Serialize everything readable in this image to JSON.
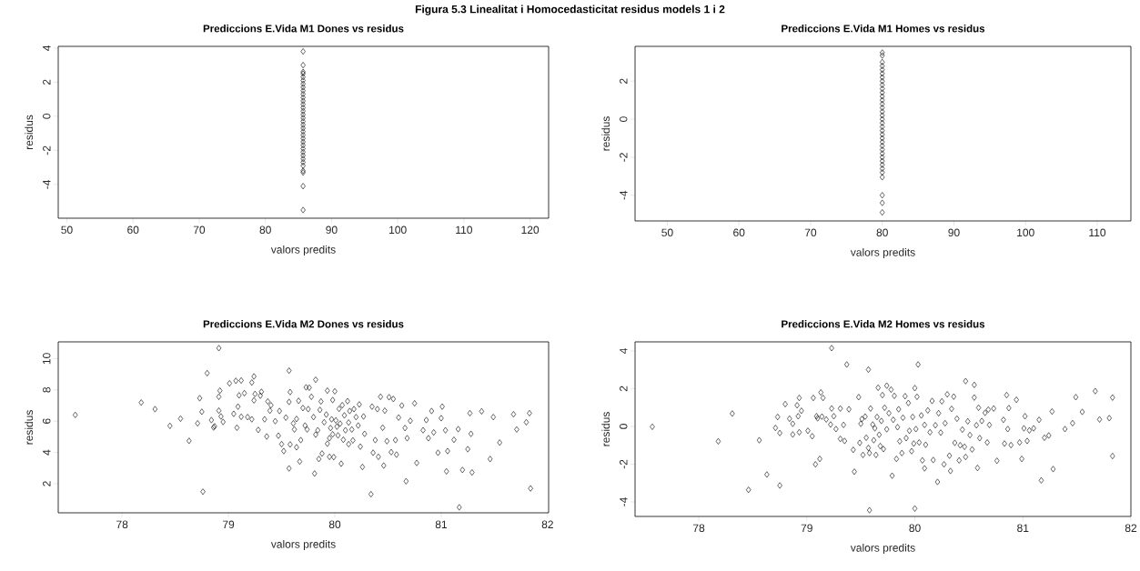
{
  "chart_data": [
    {
      "type": "scatter",
      "title": "Prediccions E.Vida M1 Dones vs residus",
      "xlabel": "valors predits",
      "ylabel": "residus",
      "annotations": [
        "Figura 5.3 Linealitat i Homocedasticitat residus models 1 i 2"
      ],
      "marker": "diamond",
      "xlim": [
        48.7,
        122.8
      ],
      "ylim": [
        -5.98,
        4.1
      ],
      "xticks": [
        50,
        60,
        70,
        80,
        90,
        100,
        110,
        120
      ],
      "yticks": [
        -4,
        -2,
        0,
        2,
        4
      ],
      "x": [
        85.7,
        85.7,
        85.7,
        85.7,
        85.7,
        85.7,
        85.7,
        85.7,
        85.7,
        85.7,
        85.7,
        85.7,
        85.7,
        85.7,
        85.7,
        85.7,
        85.7,
        85.7,
        85.7,
        85.7,
        85.7,
        85.7,
        85.7,
        85.7,
        85.7,
        85.7,
        85.7,
        85.7,
        85.7,
        85.7,
        85.7,
        85.7,
        85.7,
        85.7,
        85.7
      ],
      "series": [
        {
          "color": "#000000",
          "values": [
            3.8,
            3.0,
            2.6,
            2.5,
            2.3,
            2.1,
            1.9,
            1.7,
            1.5,
            1.3,
            1.1,
            0.9,
            0.7,
            0.5,
            0.3,
            0.1,
            -0.1,
            -0.3,
            -0.5,
            -0.7,
            -0.9,
            -1.1,
            -1.3,
            -1.5,
            -1.7,
            -1.9,
            -2.1,
            -2.3,
            -2.5,
            -2.7,
            -2.9,
            -3.2,
            -3.3,
            -4.1,
            -5.5
          ]
        }
      ]
    },
    {
      "type": "scatter",
      "title": "Prediccions E.Vida M1 Homes vs residus",
      "xlabel": "valors predits",
      "ylabel": "residus",
      "marker": "diamond",
      "xlim": [
        45.5,
        114.7
      ],
      "ylim": [
        -5.35,
        3.83
      ],
      "xticks": [
        50,
        60,
        70,
        80,
        90,
        100,
        110
      ],
      "yticks": [
        -4,
        -2,
        0,
        2
      ],
      "x": [
        80.0,
        80.0,
        80.0,
        80.0,
        80.0,
        80.0,
        80.0,
        80.0,
        80.0,
        80.0,
        80.0,
        80.0,
        80.0,
        80.0,
        80.0,
        80.0,
        80.0,
        80.0,
        80.0,
        80.0,
        80.0,
        80.0,
        80.0,
        80.0,
        80.0,
        80.0,
        80.0,
        80.0,
        80.0,
        80.0,
        80.0,
        80.0,
        80.0,
        80.0,
        80.0,
        80.0
      ],
      "series": [
        {
          "color": "#000000",
          "values": [
            3.5,
            3.35,
            3.0,
            2.8,
            2.6,
            2.4,
            2.2,
            2.0,
            1.8,
            1.6,
            1.4,
            1.2,
            1.0,
            0.8,
            0.6,
            0.4,
            0.2,
            0,
            -0.2,
            -0.4,
            -0.6,
            -0.8,
            -1.0,
            -1.2,
            -1.4,
            -1.6,
            -1.8,
            -2.0,
            -2.2,
            -2.4,
            -2.6,
            -2.8,
            -3.05,
            -4.0,
            -4.4,
            -4.9
          ]
        }
      ]
    },
    {
      "type": "scatter",
      "title": "Prediccions E.Vida M2 Dones vs residus",
      "xlabel": "valors predits",
      "ylabel": "residus",
      "marker": "diamond",
      "xlim": [
        77.4,
        82.01
      ],
      "ylim": [
        0.14,
        11.07
      ],
      "xticks": [
        78,
        79,
        80,
        81,
        82
      ],
      "yticks": [
        2,
        4,
        6,
        8,
        10
      ],
      "x": [
        77.56,
        78.18,
        78.31,
        78.45,
        78.55,
        78.63,
        78.71,
        78.73,
        78.75,
        78.76,
        78.8,
        78.84,
        78.86,
        78.87,
        78.91,
        78.91,
        78.91,
        78.92,
        78.93,
        78.95,
        79.01,
        79.05,
        79.07,
        79.08,
        79.09,
        79.1,
        79.12,
        79.12,
        79.15,
        79.18,
        79.22,
        79.22,
        79.24,
        79.24,
        79.25,
        79.28,
        79.3,
        79.31,
        79.34,
        79.36,
        79.37,
        79.39,
        79.4,
        79.44,
        79.47,
        79.48,
        79.5,
        79.52,
        79.54,
        79.57,
        79.57,
        79.57,
        79.58,
        79.58,
        79.61,
        79.62,
        79.64,
        79.64,
        79.66,
        79.67,
        79.68,
        79.7,
        79.72,
        79.73,
        79.74,
        79.75,
        79.76,
        79.78,
        79.8,
        79.81,
        79.82,
        79.82,
        79.84,
        79.85,
        79.86,
        79.87,
        79.88,
        79.9,
        79.92,
        79.93,
        79.93,
        79.95,
        79.95,
        79.96,
        79.97,
        79.98,
        79.98,
        79.99,
        80.0,
        80.01,
        80.02,
        80.03,
        80.04,
        80.05,
        80.06,
        80.07,
        80.08,
        80.09,
        80.1,
        80.12,
        80.13,
        80.13,
        80.14,
        80.16,
        80.17,
        80.18,
        80.2,
        80.22,
        80.23,
        80.24,
        80.26,
        80.27,
        80.28,
        80.34,
        80.35,
        80.36,
        80.38,
        80.4,
        80.41,
        80.43,
        80.45,
        80.46,
        80.47,
        80.49,
        80.51,
        80.53,
        80.55,
        80.57,
        80.58,
        80.6,
        80.63,
        80.66,
        80.67,
        80.68,
        80.71,
        80.75,
        80.77,
        80.83,
        80.86,
        80.88,
        80.91,
        80.93,
        80.97,
        81.0,
        81.01,
        81.04,
        81.05,
        81.06,
        81.12,
        81.16,
        81.17,
        81.2,
        81.25,
        81.27,
        81.28,
        81.29,
        81.38,
        81.46,
        81.49,
        81.55,
        81.68,
        81.71,
        81.8,
        81.83,
        81.84
      ],
      "series": [
        {
          "color": "#000000",
          "values": [
            6.4,
            7.19,
            6.77,
            5.7,
            6.16,
            4.74,
            5.86,
            7.47,
            6.6,
            1.49,
            9.07,
            6.07,
            5.6,
            5.67,
            7.56,
            6.67,
            10.67,
            7.95,
            6.3,
            5.95,
            8.42,
            6.47,
            8.58,
            5.58,
            6.93,
            7.65,
            8.6,
            6.28,
            7.79,
            6.26,
            6.12,
            8.47,
            8.86,
            7.33,
            7.74,
            5.44,
            7.63,
            7.88,
            6.12,
            5.02,
            7.26,
            6.67,
            7.02,
            6.0,
            5.07,
            6.65,
            4.53,
            4.09,
            6.23,
            9.23,
            2.98,
            7.23,
            7.86,
            4.51,
            5.86,
            5.47,
            4.33,
            6.14,
            7.3,
            3.42,
            4.79,
            6.84,
            5.72,
            8.16,
            5.47,
            6.77,
            8.14,
            7.56,
            6.26,
            2.65,
            8.65,
            5.14,
            5.42,
            3.58,
            6.72,
            7.26,
            3.93,
            5.93,
            6.42,
            7.95,
            4.56,
            4.91,
            3.72,
            5.56,
            6.12,
            7.35,
            5.16,
            3.7,
            7.91,
            6.05,
            5.65,
            5.09,
            6.79,
            5.84,
            3.28,
            7.02,
            4.81,
            6.37,
            5.42,
            7.28,
            5.91,
            4.53,
            6.65,
            5.47,
            4.77,
            6.77,
            6.26,
            5.72,
            7.07,
            4.37,
            3.07,
            6.3,
            5.19,
            1.33,
            6.93,
            3.98,
            4.79,
            6.77,
            3.72,
            7.56,
            5.58,
            3.16,
            6.67,
            4.72,
            7.53,
            4.02,
            7.42,
            4.79,
            3.86,
            6.23,
            7.0,
            5.56,
            2.16,
            4.91,
            6.02,
            7.14,
            3.33,
            5.42,
            6.07,
            4.91,
            6.65,
            5.28,
            3.98,
            6.19,
            6.93,
            5.42,
            2.79,
            4.09,
            4.81,
            5.49,
            0.49,
            2.88,
            4.21,
            6.51,
            5.19,
            2.72,
            6.63,
            3.58,
            6.26,
            4.63,
            6.44,
            5.47,
            5.93,
            6.51,
            1.7
          ]
        }
      ]
    },
    {
      "type": "scatter",
      "title": "Prediccions E.Vida M2 Homes vs residus",
      "xlabel": "valors predits",
      "ylabel": "residus",
      "marker": "diamond",
      "xlim": [
        77.41,
        82.0
      ],
      "ylim": [
        -4.77,
        4.48
      ],
      "xticks": [
        78,
        79,
        80,
        81,
        82
      ],
      "yticks": [
        -4,
        -2,
        0,
        2,
        4
      ],
      "x": [
        77.57,
        78.18,
        78.31,
        78.46,
        78.56,
        78.63,
        78.71,
        78.73,
        78.75,
        78.75,
        78.8,
        78.84,
        78.87,
        78.87,
        78.91,
        78.92,
        78.93,
        78.93,
        78.95,
        79.01,
        79.05,
        79.06,
        79.08,
        79.09,
        79.1,
        79.12,
        79.13,
        79.14,
        79.15,
        79.18,
        79.22,
        79.23,
        79.23,
        79.25,
        79.27,
        79.31,
        79.31,
        79.34,
        79.35,
        79.37,
        79.39,
        79.43,
        79.44,
        79.48,
        79.49,
        79.5,
        79.51,
        79.52,
        79.54,
        79.55,
        79.57,
        79.57,
        79.58,
        79.58,
        79.59,
        79.61,
        79.62,
        79.63,
        79.64,
        79.65,
        79.66,
        79.67,
        79.68,
        79.69,
        79.7,
        79.71,
        79.72,
        79.74,
        79.74,
        79.76,
        79.78,
        79.79,
        79.8,
        79.81,
        79.83,
        79.84,
        79.85,
        79.86,
        79.88,
        79.89,
        79.91,
        79.92,
        79.94,
        79.95,
        79.97,
        79.98,
        79.99,
        80.0,
        80.0,
        80.01,
        80.02,
        80.03,
        80.04,
        80.06,
        80.07,
        80.09,
        80.1,
        80.09,
        80.12,
        80.14,
        80.16,
        80.17,
        80.19,
        80.21,
        80.22,
        80.24,
        80.25,
        80.27,
        80.28,
        80.3,
        80.32,
        80.33,
        80.34,
        80.36,
        80.37,
        80.39,
        80.41,
        80.42,
        80.44,
        80.46,
        80.47,
        80.47,
        80.49,
        80.51,
        80.53,
        80.55,
        80.55,
        80.57,
        80.58,
        80.59,
        80.6,
        80.62,
        80.65,
        80.67,
        80.68,
        80.69,
        80.73,
        80.76,
        80.82,
        80.83,
        80.85,
        80.86,
        80.87,
        80.89,
        80.94,
        80.97,
        80.99,
        81.01,
        81.02,
        81.04,
        81.06,
        81.1,
        81.15,
        81.17,
        81.2,
        81.24,
        81.27,
        81.28,
        81.39,
        81.46,
        81.49,
        81.55,
        81.67,
        81.71,
        81.8,
        81.83,
        81.83
      ],
      "series": [
        {
          "color": "#000000",
          "values": [
            -0.02,
            -0.79,
            0.68,
            -3.36,
            -0.73,
            -2.55,
            -0.08,
            0.5,
            -0.35,
            -3.13,
            1.18,
            0.41,
            -0.43,
            0.14,
            1.12,
            0.54,
            1.51,
            -0.31,
            0.83,
            -0.23,
            -0.52,
            1.51,
            -2.01,
            0.54,
            0.43,
            -1.72,
            1.8,
            0.52,
            1.51,
            0.37,
            0.1,
            4.15,
            0.95,
            0.54,
            -0.14,
            0.95,
            -0.66,
            0.08,
            -0.77,
            3.28,
            0.91,
            -1.24,
            -2.4,
            1.55,
            -0.87,
            0.14,
            0.39,
            -1.51,
            0.52,
            -0.6,
            3.01,
            -1.14,
            -1.41,
            -4.44,
            0.95,
            0.1,
            -0.73,
            -0.1,
            -1.51,
            0.5,
            2.05,
            -0.44,
            -1.04,
            0.29,
            1.66,
            -1.2,
            0.99,
            2.16,
            -0.15,
            0.7,
            1.95,
            -2.61,
            0.35,
            1.62,
            -1.72,
            -0.04,
            0.91,
            -0.79,
            -1.41,
            0.46,
            1.6,
            -0.62,
            1.24,
            -0.23,
            -1.31,
            0.5,
            -0.91,
            2.03,
            -4.35,
            -0.14,
            1.57,
            3.28,
            -0.85,
            0.58,
            -1.8,
            0.08,
            -0.97,
            -2.22,
            0.85,
            -0.31,
            1.35,
            -1.78,
            0.06,
            -2.94,
            0.7,
            -0.33,
            1.33,
            -2.01,
            0.17,
            1.7,
            -1.55,
            -2.36,
            0.93,
            1.58,
            -0.87,
            0.41,
            -1.8,
            -1.0,
            -0.17,
            -1.08,
            -1.62,
            2.4,
            0.27,
            -0.46,
            -1.22,
            1.53,
            2.2,
            0.06,
            -2.2,
            0.99,
            -0.62,
            0.29,
            0.72,
            -0.85,
            0.89,
            0.08,
            0.95,
            -1.82,
            0.35,
            -0.91,
            1.66,
            -0.14,
            0.97,
            -0.99,
            1.41,
            -0.85,
            -1.72,
            -0.1,
            0.54,
            -0.77,
            -0.21,
            -0.1,
            0.35,
            -2.86,
            -0.6,
            -0.48,
            0.79,
            -2.26,
            -0.14,
            0.17,
            1.55,
            0.77,
            1.87,
            0.37,
            0.44,
            1.53,
            -1.57
          ]
        }
      ]
    }
  ]
}
